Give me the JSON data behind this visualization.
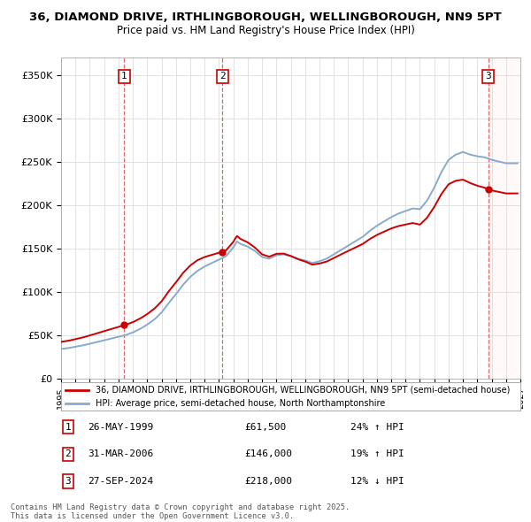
{
  "title_line1": "36, DIAMOND DRIVE, IRTHLINGBOROUGH, WELLINGBOROUGH, NN9 5PT",
  "title_line2": "Price paid vs. HM Land Registry's House Price Index (HPI)",
  "hpi_label": "HPI: Average price, semi-detached house, North Northamptonshire",
  "property_label": "36, DIAMOND DRIVE, IRTHLINGBOROUGH, WELLINGBOROUGH, NN9 5PT (semi-detached house",
  "red_color": "#cc0000",
  "blue_color": "#88aacc",
  "background_color": "#ffffff",
  "grid_color": "#dddddd",
  "purchases": [
    {
      "num": 1,
      "date": "26-MAY-1999",
      "price": 61500,
      "year": 1999.4,
      "hpi_pct": "24% ↑ HPI"
    },
    {
      "num": 2,
      "date": "31-MAR-2006",
      "price": 146000,
      "year": 2006.25,
      "hpi_pct": "19% ↑ HPI"
    },
    {
      "num": 3,
      "date": "27-SEP-2024",
      "price": 218000,
      "year": 2024.75,
      "hpi_pct": "12% ↓ HPI"
    }
  ],
  "ylim": [
    0,
    370000
  ],
  "xlim_start": 1995,
  "xlim_end": 2027,
  "yticks": [
    0,
    50000,
    100000,
    150000,
    200000,
    250000,
    300000,
    350000
  ],
  "ytick_labels": [
    "£0",
    "£50K",
    "£100K",
    "£150K",
    "£200K",
    "£250K",
    "£300K",
    "£350K"
  ],
  "footer_line1": "Contains HM Land Registry data © Crown copyright and database right 2025.",
  "footer_line2": "This data is licensed under the Open Government Licence v3.0."
}
